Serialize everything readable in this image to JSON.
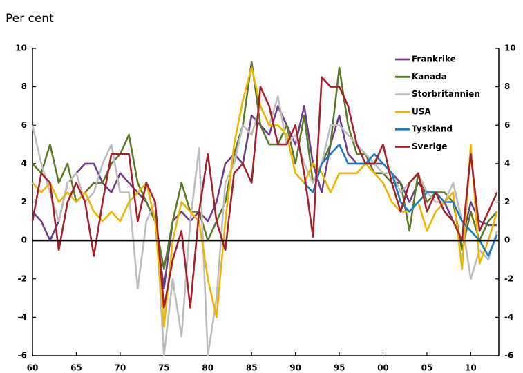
{
  "chart_data": {
    "type": "line",
    "title": "Per cent",
    "x": [
      1960,
      1961,
      1962,
      1963,
      1964,
      1965,
      1966,
      1967,
      1968,
      1969,
      1970,
      1971,
      1972,
      1973,
      1974,
      1975,
      1976,
      1977,
      1978,
      1979,
      1980,
      1981,
      1982,
      1983,
      1984,
      1985,
      1986,
      1987,
      1988,
      1989,
      1990,
      1991,
      1992,
      1993,
      1994,
      1995,
      1996,
      1997,
      1998,
      1999,
      2000,
      2001,
      2002,
      2003,
      2004,
      2005,
      2006,
      2007,
      2008,
      2009,
      2010,
      2011,
      2012,
      2013
    ],
    "series": [
      {
        "name": "Frankrike",
        "color": "#6b3d8a",
        "values": [
          1.5,
          1,
          0,
          1,
          3,
          3.5,
          4,
          4,
          3,
          2.5,
          3.5,
          3,
          2.5,
          2,
          1,
          -2.5,
          1,
          1.5,
          1,
          1.5,
          1,
          2,
          4,
          4.5,
          4,
          6.5,
          6,
          5.5,
          7,
          6,
          5,
          7,
          4,
          2.5,
          5,
          6.5,
          4.5,
          4,
          4,
          4,
          4,
          3.5,
          3,
          2,
          3,
          2.5,
          2.5,
          2,
          1,
          0,
          2,
          1,
          0.8,
          0.8
        ]
      },
      {
        "name": "Kanada",
        "color": "#5a7b2a",
        "values": [
          4,
          3.5,
          5,
          3,
          4,
          2,
          2.5,
          3,
          3,
          4,
          4.5,
          5.5,
          3,
          2,
          1,
          -1.5,
          1,
          3,
          1.5,
          1.5,
          0,
          1,
          2,
          4.5,
          6,
          9.3,
          6,
          5,
          5,
          6,
          4,
          6.5,
          3,
          4,
          5,
          9,
          6,
          4.5,
          4.5,
          3.5,
          3.5,
          3,
          3,
          0.5,
          3.5,
          2,
          2.5,
          2.5,
          2,
          -0.5,
          1.5,
          0,
          1,
          1.5
        ]
      },
      {
        "name": "Storbritannien",
        "color": "#bdbdbd",
        "values": [
          6,
          4,
          2.5,
          1,
          3,
          3.5,
          2,
          2.5,
          4,
          5,
          2.5,
          2.5,
          -2.5,
          1,
          2,
          -6,
          -2,
          -5,
          1,
          4.8,
          -6,
          -3,
          3,
          4,
          6,
          5.5,
          7,
          6,
          7.5,
          5,
          5.5,
          4,
          3,
          4,
          6,
          6,
          5.5,
          5,
          4.5,
          4,
          3.5,
          3.5,
          2.5,
          3,
          3.5,
          2.5,
          2,
          2,
          3,
          1,
          -2,
          -0.5,
          -1,
          0.5
        ]
      },
      {
        "name": "USA",
        "color": "#f0b400",
        "values": [
          3,
          2.5,
          3,
          2,
          2.5,
          2,
          2.5,
          1.5,
          1,
          1.5,
          1,
          2,
          2.5,
          3,
          1,
          -4.5,
          0,
          2,
          1.5,
          1,
          -2,
          -4,
          1,
          5,
          7.3,
          9,
          7,
          6,
          6,
          5.5,
          3.5,
          3,
          4,
          3.5,
          2.5,
          3.5,
          3.5,
          3.5,
          4,
          3.5,
          3,
          2,
          1.5,
          1.5,
          2,
          0.5,
          1.5,
          2,
          2.5,
          -1.5,
          5,
          -1.2,
          0,
          1.5
        ]
      },
      {
        "name": "Tyskland",
        "color": "#1a7ac0",
        "values": [
          null,
          null,
          null,
          null,
          null,
          null,
          null,
          null,
          null,
          null,
          null,
          null,
          null,
          null,
          null,
          null,
          null,
          null,
          null,
          null,
          null,
          null,
          null,
          null,
          null,
          null,
          null,
          null,
          null,
          null,
          null,
          3,
          2.5,
          4,
          4.5,
          5,
          4,
          4,
          4,
          4.5,
          4,
          3.5,
          2,
          1.5,
          2,
          2.5,
          2.5,
          2,
          2,
          1,
          0.5,
          0,
          -0.8,
          0.3
        ]
      },
      {
        "name": "Sverige",
        "color": "#a5202a",
        "values": [
          1,
          3.5,
          3,
          -0.5,
          2,
          3,
          2,
          -0.8,
          2,
          4.5,
          4.5,
          4.5,
          1,
          3,
          2,
          -3.5,
          -1,
          0.5,
          -3.5,
          1.5,
          4.5,
          1,
          -0.5,
          3.5,
          4,
          3,
          8,
          7,
          5,
          5,
          6,
          3.5,
          0.2,
          8.5,
          8,
          8,
          7,
          5,
          4,
          4,
          5,
          3,
          1.5,
          3,
          3.5,
          1.5,
          2.5,
          1.5,
          1,
          0,
          4.5,
          0.5,
          1.5,
          2.5
        ]
      }
    ],
    "xlim": [
      1960,
      2013.2
    ],
    "xticks": [
      {
        "value": 1960,
        "label": "60"
      },
      {
        "value": 1965,
        "label": "65"
      },
      {
        "value": 1970,
        "label": "70"
      },
      {
        "value": 1975,
        "label": "75"
      },
      {
        "value": 1980,
        "label": "80"
      },
      {
        "value": 1985,
        "label": "85"
      },
      {
        "value": 1990,
        "label": "90"
      },
      {
        "value": 1995,
        "label": "95"
      },
      {
        "value": 2000,
        "label": "00"
      },
      {
        "value": 2005,
        "label": "05"
      },
      {
        "value": 2010,
        "label": "10"
      }
    ],
    "ylim": [
      -6,
      10
    ],
    "yticks": [
      -6,
      -4,
      -2,
      0,
      2,
      4,
      6,
      8,
      10
    ],
    "y2lim": [
      -6,
      10
    ],
    "y2ticks": [
      -6,
      -4,
      -2,
      0,
      2,
      4,
      6,
      8,
      10
    ],
    "legend": "upper right"
  }
}
